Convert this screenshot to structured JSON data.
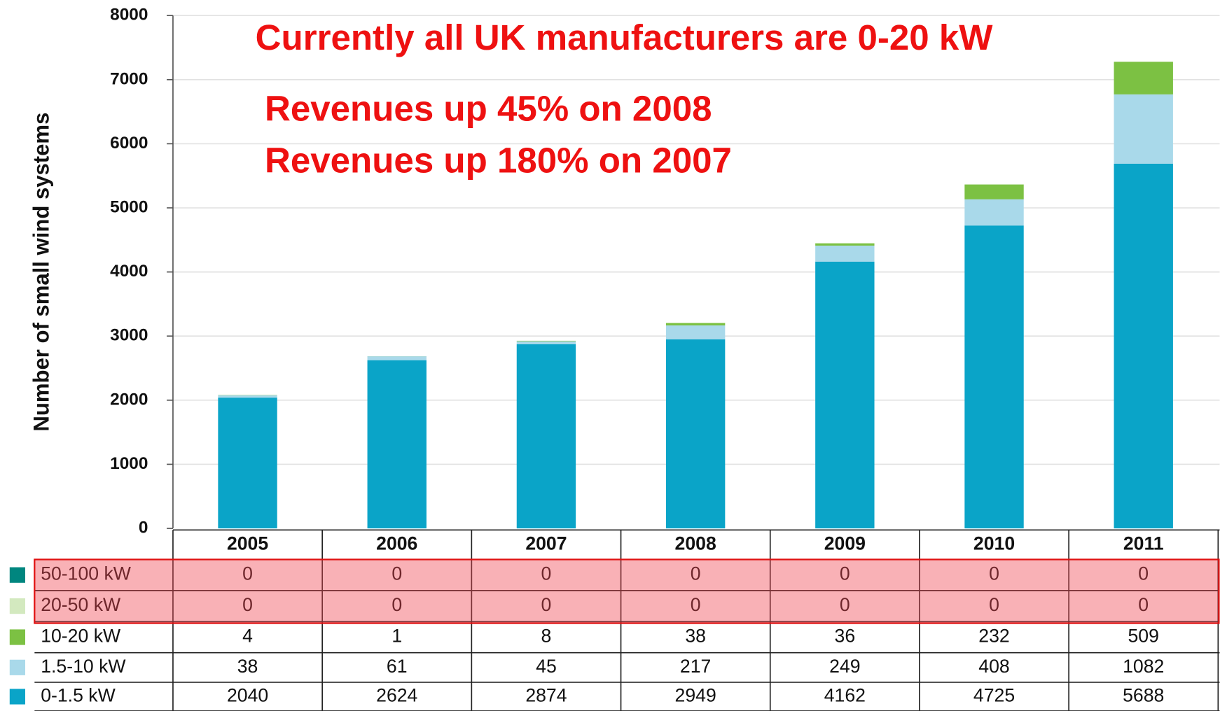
{
  "chart_data": {
    "type": "bar",
    "stacked": true,
    "ylabel": "Number of small wind systems",
    "annotations": [
      "Currently all UK manufacturers are 0-20 kW",
      "Revenues up 45% on 2008",
      "Revenues up 180% on 2007"
    ],
    "categories": [
      "2005",
      "2006",
      "2007",
      "2008",
      "2009",
      "2010",
      "2011"
    ],
    "series": [
      {
        "name": "0-1.5 kW",
        "color": "#0aa4c8",
        "values": [
          2040,
          2624,
          2874,
          2949,
          4162,
          4725,
          5688
        ]
      },
      {
        "name": "1.5-10 kW",
        "color": "#a9d9ea",
        "values": [
          38,
          61,
          45,
          217,
          249,
          408,
          1082
        ]
      },
      {
        "name": "10-20 kW",
        "color": "#7cc143",
        "values": [
          4,
          1,
          8,
          38,
          36,
          232,
          509
        ]
      },
      {
        "name": "20-50 kW",
        "color": "#d3e9bf",
        "values": [
          0,
          0,
          0,
          0,
          0,
          0,
          0
        ]
      },
      {
        "name": "50-100 kW",
        "color": "#00867f",
        "values": [
          0,
          0,
          0,
          0,
          0,
          0,
          0
        ]
      }
    ],
    "ylim": [
      0,
      8000
    ],
    "yticks": [
      0,
      1000,
      2000,
      3000,
      4000,
      5000,
      6000,
      7000,
      8000
    ],
    "grid": true
  }
}
